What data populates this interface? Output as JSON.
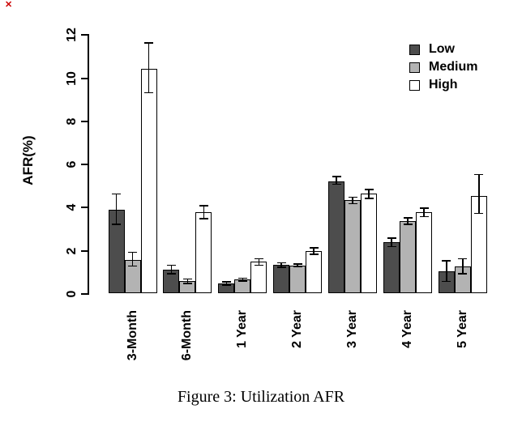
{
  "figure": {
    "caption": "Figure 3: Utilization AFR",
    "broken_image_icon": {
      "glyph": "✕",
      "color": "#cc0000"
    }
  },
  "chart_data": {
    "type": "bar",
    "title": "",
    "xlabel": "",
    "ylabel": "AFR(%)",
    "ylim": [
      0,
      12
    ],
    "yticks": [
      0,
      2,
      4,
      6,
      8,
      10,
      12
    ],
    "grid": false,
    "error_bars": true,
    "legend_position": "top-right",
    "categories": [
      "3-Month",
      "6-Month",
      "1 Year",
      "2 Year",
      "3 Year",
      "4 Year",
      "5 Year"
    ],
    "series": [
      {
        "name": "Low",
        "color": "#4d4d4d",
        "values": [
          3.85,
          1.1,
          0.45,
          1.3,
          5.2,
          2.35,
          1.0
        ],
        "error_low": [
          3.2,
          0.9,
          0.38,
          1.2,
          5.05,
          2.15,
          0.55
        ],
        "error_high": [
          4.6,
          1.3,
          0.52,
          1.4,
          5.4,
          2.55,
          1.5
        ]
      },
      {
        "name": "Medium",
        "color": "#b3b3b3",
        "values": [
          1.55,
          0.55,
          0.63,
          1.28,
          4.3,
          3.35,
          1.25
        ],
        "error_low": [
          1.25,
          0.45,
          0.56,
          1.22,
          4.15,
          3.2,
          0.9
        ],
        "error_high": [
          1.9,
          0.65,
          0.7,
          1.35,
          4.45,
          3.5,
          1.6
        ]
      },
      {
        "name": "High",
        "color": "#ffffff",
        "values": [
          10.4,
          3.75,
          1.45,
          1.95,
          4.6,
          3.75,
          4.5
        ],
        "error_low": [
          9.3,
          3.45,
          1.3,
          1.8,
          4.4,
          3.55,
          3.7
        ],
        "error_high": [
          11.6,
          4.05,
          1.6,
          2.1,
          4.8,
          3.95,
          5.5
        ]
      }
    ],
    "colors": {
      "axis": "#000000",
      "error_bar": "#000000",
      "bar_border": "#000000"
    }
  }
}
